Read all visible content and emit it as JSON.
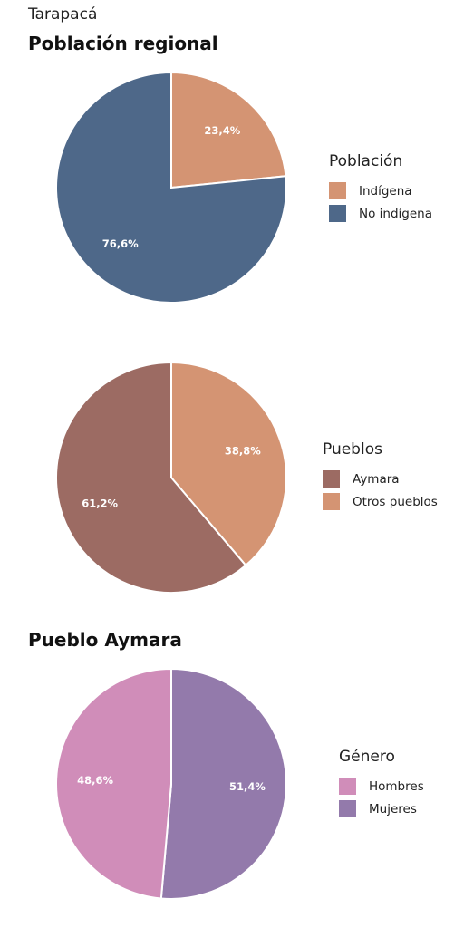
{
  "region": "Tarapacá",
  "section_poblacion": "Población regional",
  "section_aymara": "Pueblo Aymara",
  "chart_data": [
    {
      "type": "pie",
      "legend_title": "Población",
      "legend_placement": "right",
      "slices": [
        {
          "label": "Indígena",
          "value": 23.4,
          "text": "23,4%",
          "color": "#d49473"
        },
        {
          "label": "No indígena",
          "value": 76.6,
          "text": "76,6%",
          "color": "#4e6889"
        }
      ]
    },
    {
      "type": "pie",
      "legend_title": "Pueblos",
      "legend_placement": "right",
      "slices": [
        {
          "label": "Otros pueblos",
          "value": 38.8,
          "text": "38,8%",
          "color": "#d49473"
        },
        {
          "label": "Aymara",
          "value": 61.2,
          "text": "61,2%",
          "color": "#9c6b63"
        }
      ],
      "legend_order": [
        1,
        0
      ]
    },
    {
      "type": "pie",
      "legend_title": "Género",
      "legend_placement": "right",
      "slices": [
        {
          "label": "Mujeres",
          "value": 51.4,
          "text": "51,4%",
          "color": "#937aab"
        },
        {
          "label": "Hombres",
          "value": 48.6,
          "text": "48,6%",
          "color": "#d08db9"
        }
      ],
      "legend_order": [
        1,
        0
      ]
    }
  ]
}
